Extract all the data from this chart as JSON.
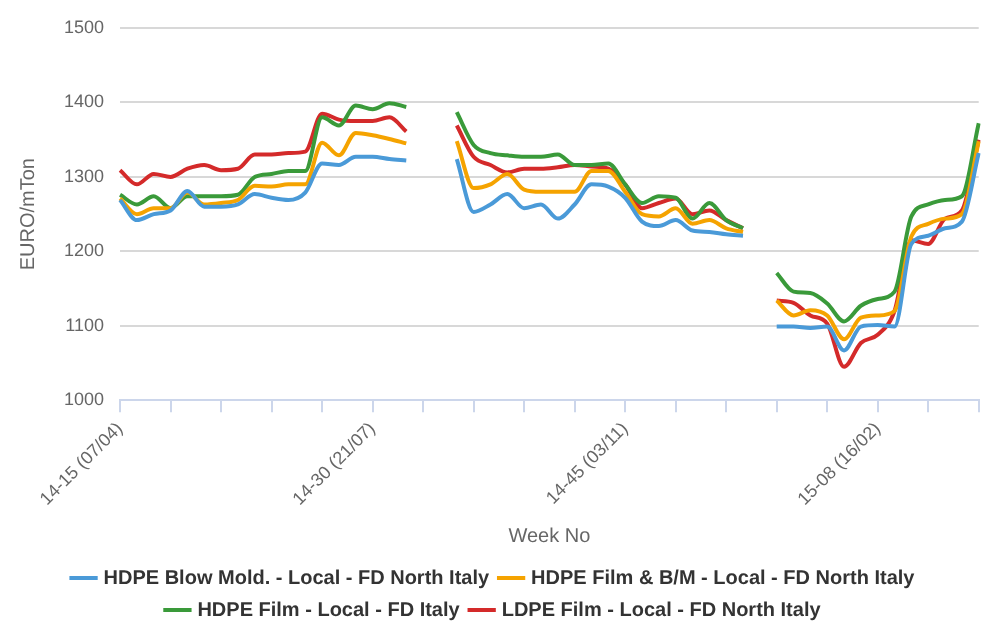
{
  "chart_data": {
    "type": "line",
    "xlabel": "Week No",
    "ylabel": "EURO/mTon",
    "categories": [
      "14-15 (07/04)",
      null,
      null,
      null,
      null,
      null,
      null,
      null,
      null,
      null,
      null,
      null,
      null,
      null,
      null,
      "14-30 (21/07)",
      null,
      null,
      null,
      null,
      null,
      null,
      null,
      null,
      null,
      null,
      null,
      null,
      null,
      null,
      "14-45 (03/11)",
      null,
      null,
      null,
      null,
      null,
      null,
      null,
      null,
      null,
      null,
      null,
      null,
      null,
      null,
      "15-08 (16/02)",
      null,
      null,
      null,
      null,
      null,
      null
    ],
    "ylim": [
      1000,
      1500
    ],
    "yticks": [
      1000,
      1100,
      1200,
      1300,
      1400,
      1500
    ],
    "grid": "y",
    "legend": "bottom",
    "marker": "none",
    "line_style": "solid",
    "series": [
      {
        "name": "HDPE Blow Mold. - Local - FD North Italy",
        "color": "#4a9ad8",
        "values": [
          1269,
          1242,
          1250,
          1255,
          1281,
          1260,
          1260,
          1263,
          1277,
          1272,
          1269,
          1279,
          1318,
          1316,
          1327,
          1327,
          1324,
          1322,
          null,
          null,
          1324,
          1253,
          1263,
          1277,
          1258,
          1263,
          1244,
          1263,
          1290,
          1287,
          1272,
          1240,
          1234,
          1242,
          1228,
          1226,
          1223,
          1221,
          null,
          1099,
          1099,
          1097,
          1099,
          1067,
          1099,
          1101,
          1099,
          1210,
          1221,
          1231,
          1240,
          1332
        ]
      },
      {
        "name": "HDPE Film & B/M - Local - FD North Italy",
        "color": "#f5a300",
        "values": [
          1271,
          1250,
          1258,
          1258,
          1279,
          1263,
          1265,
          1269,
          1288,
          1287,
          1290,
          1290,
          1346,
          1329,
          1359,
          1356,
          1351,
          1345,
          null,
          null,
          1348,
          1285,
          1290,
          1304,
          1283,
          1280,
          1280,
          1280,
          1308,
          1308,
          1280,
          1250,
          1247,
          1258,
          1237,
          1242,
          1231,
          1226,
          null,
          1134,
          1114,
          1121,
          1114,
          1082,
          1111,
          1114,
          1120,
          1220,
          1237,
          1244,
          1250,
          1348
        ]
      },
      {
        "name": "HDPE Film - Local - FD Italy",
        "color": "#3a9a3a",
        "values": [
          1276,
          1263,
          1274,
          1258,
          1274,
          1274,
          1274,
          1276,
          1300,
          1304,
          1308,
          1308,
          1380,
          1369,
          1396,
          1391,
          1399,
          1394,
          null,
          null,
          1387,
          1343,
          1332,
          1329,
          1327,
          1327,
          1330,
          1316,
          1316,
          1318,
          1290,
          1265,
          1274,
          1272,
          1244,
          1265,
          1242,
          1231,
          null,
          1171,
          1146,
          1144,
          1130,
          1106,
          1127,
          1136,
          1146,
          1247,
          1263,
          1269,
          1274,
          1372
        ]
      },
      {
        "name": "LDPE Film - Local - FD North Italy",
        "color": "#d42a2a",
        "values": [
          1309,
          1290,
          1304,
          1300,
          1311,
          1316,
          1309,
          1311,
          1330,
          1330,
          1332,
          1334,
          1385,
          1377,
          1375,
          1375,
          1380,
          1361,
          null,
          null,
          1369,
          1327,
          1316,
          1306,
          1311,
          1311,
          1313,
          1316,
          1314,
          1311,
          1290,
          1258,
          1265,
          1271,
          1250,
          1255,
          1242,
          1231,
          null,
          1134,
          1131,
          1114,
          1103,
          1045,
          1077,
          1088,
          1120,
          1215,
          1210,
          1244,
          1255,
          1350
        ]
      }
    ]
  }
}
